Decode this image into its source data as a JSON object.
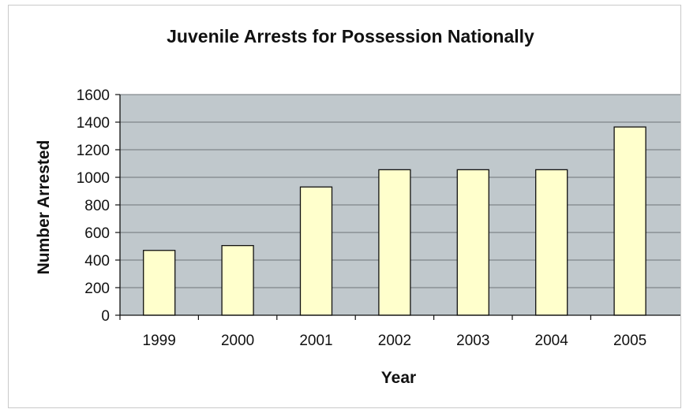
{
  "chart_data": {
    "type": "bar",
    "title": "Juvenile Arrests for Possession Nationally",
    "xlabel": "Year",
    "ylabel": "Number Arrested",
    "categories": [
      "1999",
      "2000",
      "2001",
      "2002",
      "2003",
      "2004",
      "2005"
    ],
    "values": [
      470,
      505,
      930,
      1055,
      1055,
      1055,
      1365
    ],
    "ylim": [
      0,
      1600
    ],
    "yticks": [
      "0",
      "200",
      "400",
      "600",
      "800",
      "1000",
      "1200",
      "1400",
      "1600"
    ],
    "grid": true,
    "colors": {
      "bar_fill": "#ffffcc",
      "bar_stroke": "#111111",
      "plot_background": "#c0c8cc",
      "gridline": "#6e7478"
    }
  }
}
